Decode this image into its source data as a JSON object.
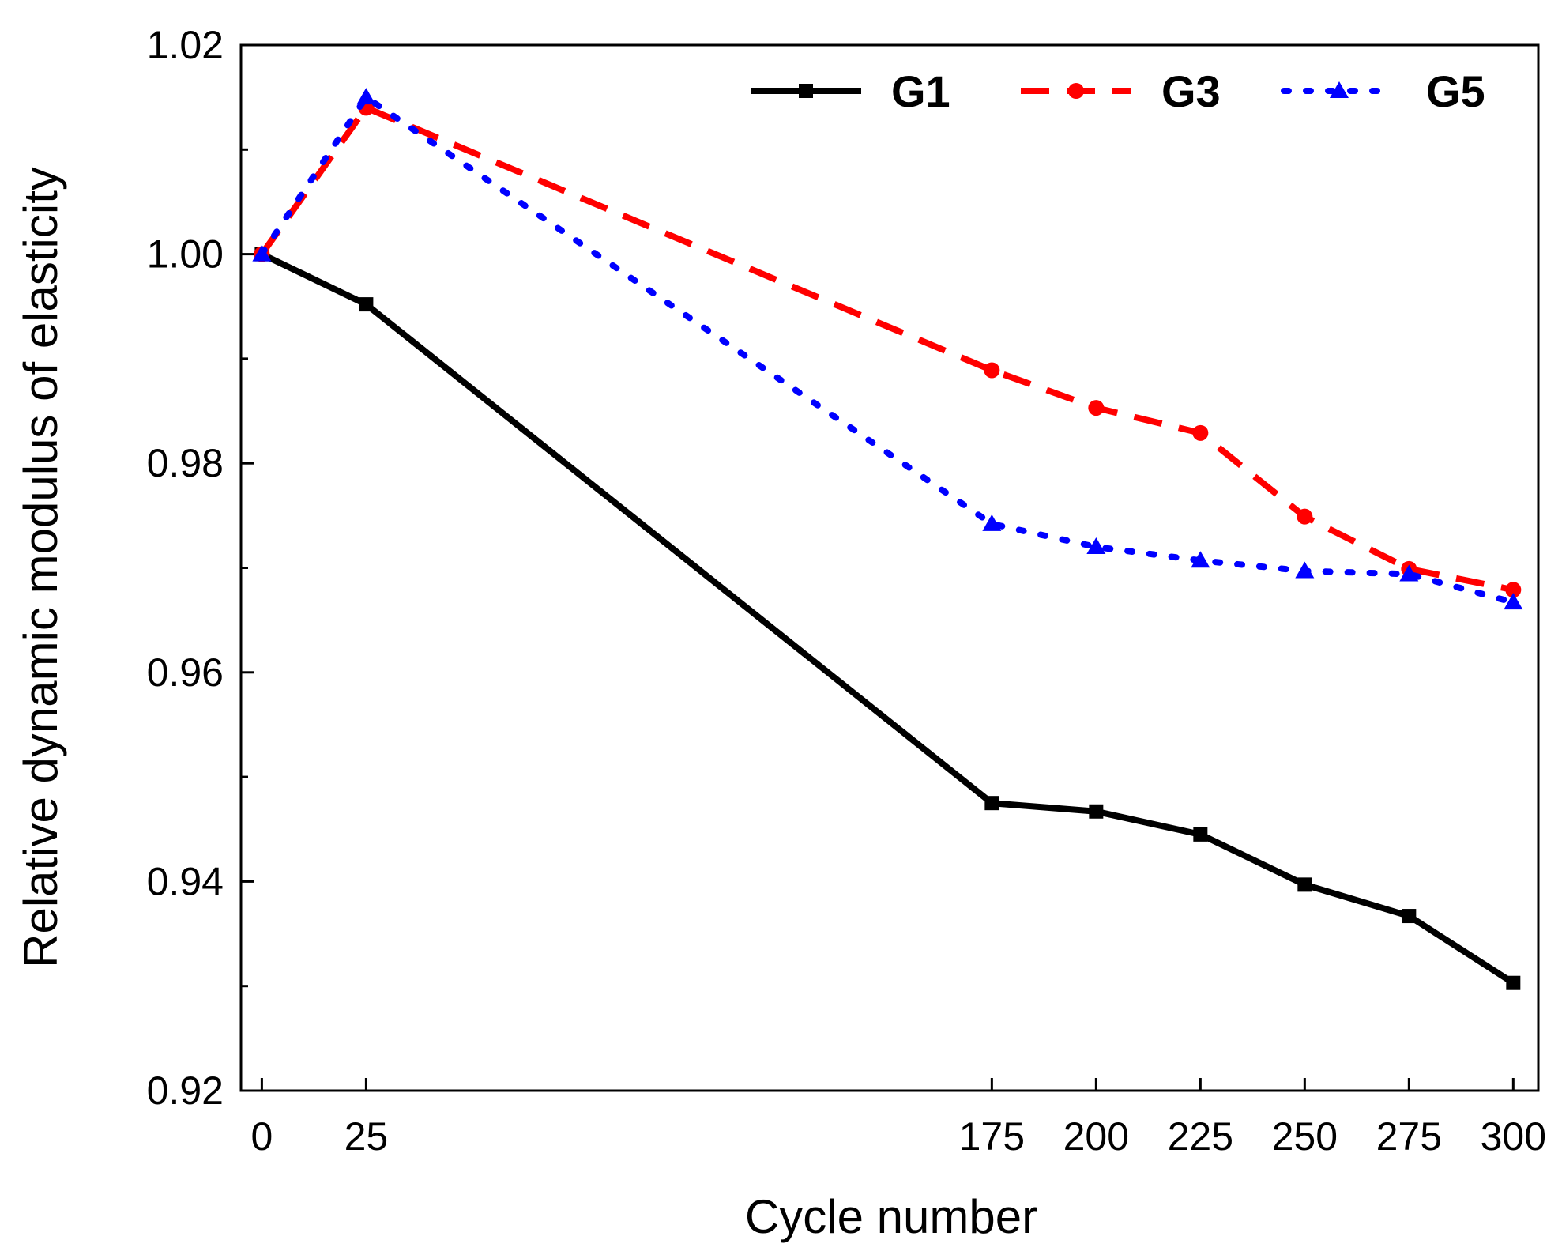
{
  "chart_data": {
    "type": "line",
    "title": "",
    "xlabel": "Cycle number",
    "ylabel": "Relative dynamic modulus of elasticity",
    "x": [
      0,
      25,
      175,
      200,
      225,
      250,
      275,
      300
    ],
    "xticks": [
      "0",
      "25",
      "175",
      "200",
      "225",
      "250",
      "275",
      "300"
    ],
    "xlim": [
      -5,
      306
    ],
    "ylim": [
      0.92,
      1.02
    ],
    "yticks": [
      "0.92",
      "0.94",
      "0.96",
      "0.98",
      "1.00",
      "1.02"
    ],
    "grid": false,
    "legend_position": "top-right",
    "series": [
      {
        "name": "G1",
        "color": "#000000",
        "line": "solid",
        "marker": "square",
        "values": [
          1.0,
          0.9952,
          0.9475,
          0.9467,
          0.9445,
          0.9397,
          0.9367,
          0.9303
        ]
      },
      {
        "name": "G3",
        "color": "#ff0000",
        "line": "dashed",
        "marker": "circle",
        "values": [
          1.0,
          1.014,
          0.9889,
          0.9853,
          0.9829,
          0.9749,
          0.9699,
          0.9679
        ]
      },
      {
        "name": "G5",
        "color": "#0000ff",
        "line": "dotted",
        "marker": "triangle",
        "values": [
          1.0,
          1.015,
          0.9742,
          0.972,
          0.9707,
          0.9697,
          0.9694,
          0.9667
        ]
      }
    ]
  }
}
